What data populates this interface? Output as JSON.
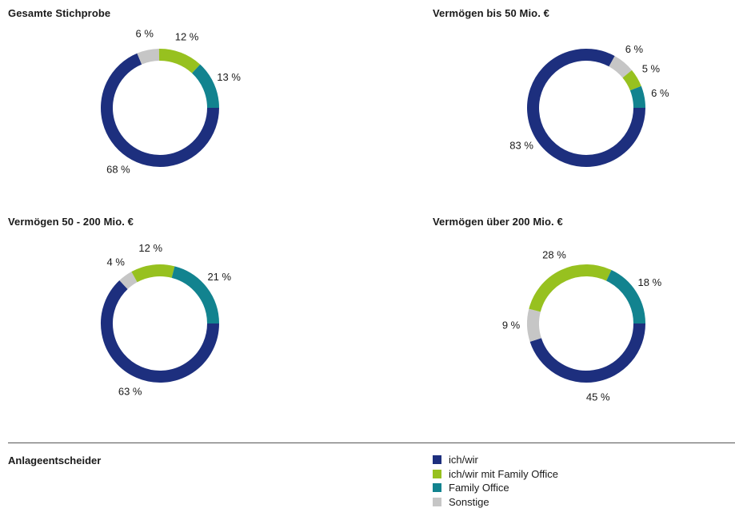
{
  "chart_data": [
    {
      "type": "pie",
      "title": "Gesamte Stichprobe",
      "slices": [
        {
          "name": "ich/wir",
          "value": 68,
          "label": "68 %"
        },
        {
          "name": "Sonstige",
          "value": 6,
          "label": "6 %"
        },
        {
          "name": "ich/wir mit Family Office",
          "value": 12,
          "label": "12 %"
        },
        {
          "name": "Family Office",
          "value": 13,
          "label": "13 %"
        }
      ]
    },
    {
      "type": "pie",
      "title": "Vermögen bis 50 Mio. €",
      "slices": [
        {
          "name": "ich/wir",
          "value": 83,
          "label": "83 %"
        },
        {
          "name": "Sonstige",
          "value": 6,
          "label": "6 %"
        },
        {
          "name": "ich/wir mit Family Office",
          "value": 5,
          "label": "5 %"
        },
        {
          "name": "Family Office",
          "value": 6,
          "label": "6 %"
        }
      ]
    },
    {
      "type": "pie",
      "title": "Vermögen 50 - 200 Mio. €",
      "slices": [
        {
          "name": "ich/wir",
          "value": 63,
          "label": "63 %"
        },
        {
          "name": "Sonstige",
          "value": 4,
          "label": "4 %"
        },
        {
          "name": "ich/wir mit Family Office",
          "value": 12,
          "label": "12 %"
        },
        {
          "name": "Family Office",
          "value": 21,
          "label": "21 %"
        }
      ]
    },
    {
      "type": "pie",
      "title": "Vermögen über 200 Mio. €",
      "slices": [
        {
          "name": "ich/wir",
          "value": 45,
          "label": "45 %"
        },
        {
          "name": "Sonstige",
          "value": 9,
          "label": "9 %"
        },
        {
          "name": "ich/wir mit Family Office",
          "value": 28,
          "label": "28 %"
        },
        {
          "name": "Family Office",
          "value": 18,
          "label": "18 %"
        }
      ]
    }
  ],
  "legend": {
    "title": "Anlageentscheider",
    "items": [
      {
        "label": "ich/wir",
        "color": "#1d2f7e"
      },
      {
        "label": "ich/wir mit Family Office",
        "color": "#97c11f"
      },
      {
        "label": "Family Office",
        "color": "#12838f"
      },
      {
        "label": "Sonstige",
        "color": "#c6c6c6"
      }
    ]
  },
  "colors": {
    "ich/wir": "#1d2f7e",
    "ich/wir mit Family Office": "#97c11f",
    "Family Office": "#12838f",
    "Sonstige": "#c6c6c6"
  }
}
